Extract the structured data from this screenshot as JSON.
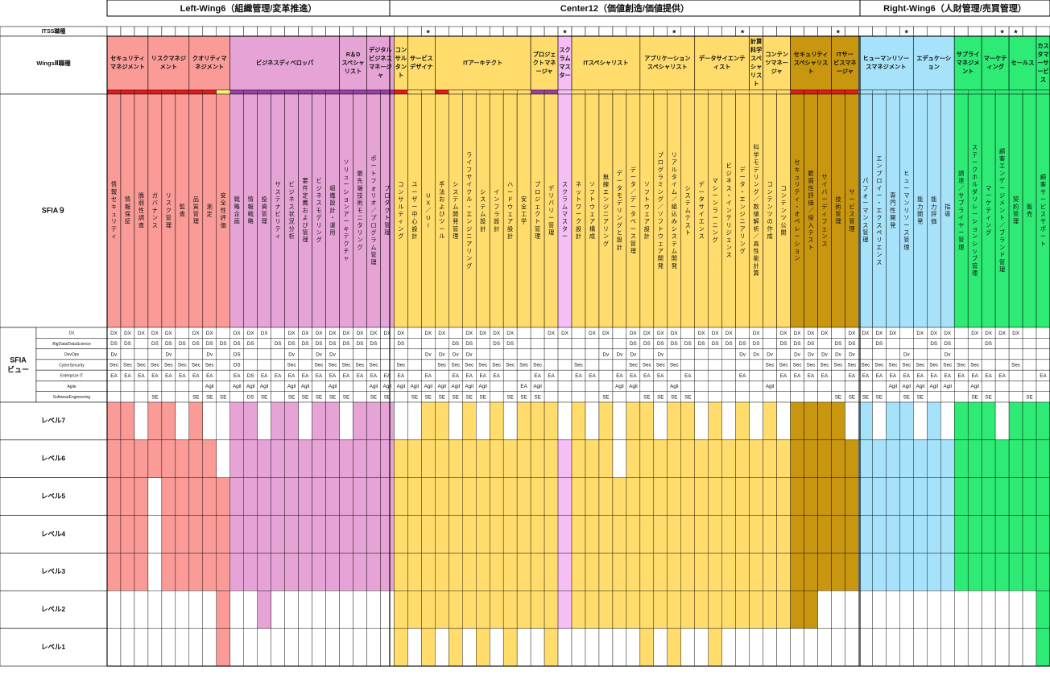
{
  "wings": [
    {
      "label": "Left-Wing6（組織管理/変革推進）"
    },
    {
      "label": "Center12（価値創造/価値提供）"
    },
    {
      "label": "Right-Wing6（人財管理/売買管理）"
    }
  ],
  "row_labels": {
    "itss": "ITSS職種",
    "wings2": "WingsⅡ職種",
    "sfia9": "SFIA９",
    "sfia_view": "SFIA\nビュー"
  },
  "view_labels": [
    "DX",
    "BigData/DataScience",
    "DevOps",
    "CyberSecurity",
    "Enterprize IT",
    "Agile",
    "SoftwearEngineering"
  ],
  "level_labels": [
    "レベル7",
    "レベル6",
    "レベル5",
    "レベル4",
    "レベル3",
    "レベル2",
    "レベル1"
  ],
  "itss_star_cols": [
    23,
    33,
    41,
    46,
    53,
    58,
    65,
    66
  ],
  "star_glyph": "★",
  "colors": {
    "salmon": "#FA9B97",
    "pink": "#E6A3D6",
    "yellow": "#FFDC6B",
    "lavender": "#F5BEF5",
    "gold": "#C9960F",
    "cyan": "#A6E2FA",
    "green": "#2EEB75",
    "red": "#E01B1B",
    "purple": "#9B3FA6",
    "lime": "#EDF56B"
  },
  "groups": [
    {
      "label": "セキュリティマネジメント",
      "span": 3,
      "color": "salmon",
      "bars": [
        "red",
        "red",
        "red"
      ]
    },
    {
      "label": "リスクマネジメント",
      "span": 3,
      "color": "salmon",
      "bars": [
        "red",
        "red",
        "red"
      ]
    },
    {
      "label": "クオリティマネジメント",
      "span": 3,
      "color": "salmon",
      "bars": [
        "red",
        "red",
        "lime"
      ]
    },
    {
      "label": "ビジネスディベロッパ",
      "span": 8,
      "color": "pink",
      "bars": [
        "purple",
        "purple",
        "purple",
        "purple",
        "purple",
        "purple",
        "purple",
        "purple"
      ]
    },
    {
      "label": "R＆D スペシャリスト",
      "span": 2,
      "color": "pink",
      "bars": [
        "purple",
        "purple"
      ]
    },
    {
      "label": "デジタルビジネスマネージャ",
      "span": 2,
      "color": "pink",
      "bars": [
        "purple",
        "purple"
      ]
    },
    {
      "label": "コンサルタント",
      "span": 1,
      "color": "yellow",
      "bars": [
        "red"
      ]
    },
    {
      "label": "サービスデザイナ",
      "span": 2,
      "color": "yellow",
      "bars": [
        "",
        ""
      ]
    },
    {
      "label": "ITアーキテクト",
      "span": 7,
      "color": "yellow",
      "bars": [
        "red",
        "",
        "",
        "",
        "",
        "",
        ""
      ]
    },
    {
      "label": "プロジェクトマネージャ",
      "span": 2,
      "color": "yellow",
      "bars": [
        "purple",
        "purple"
      ]
    },
    {
      "label": "スクラムマスター",
      "span": 1,
      "color": "lavender",
      "bars": [
        ""
      ]
    },
    {
      "label": "ITスペシャリスト",
      "span": 5,
      "color": "yellow",
      "bars": [
        "",
        "",
        "",
        "",
        ""
      ]
    },
    {
      "label": "アプリケーションスペシャリスト",
      "span": 4,
      "color": "yellow",
      "bars": [
        "",
        "",
        "",
        ""
      ]
    },
    {
      "label": "データサイエンティスト",
      "span": 4,
      "color": "yellow",
      "bars": [
        "",
        "",
        "",
        ""
      ]
    },
    {
      "label": "計算科学スペシャリスト",
      "span": 1,
      "color": "yellow",
      "bars": [
        ""
      ]
    },
    {
      "label": "コンテンツマネージャ",
      "span": 2,
      "color": "yellow",
      "bars": [
        "",
        ""
      ]
    },
    {
      "label": "セキュリティスペシャリスト",
      "span": 3,
      "color": "gold",
      "bars": [
        "red",
        "red",
        "red"
      ]
    },
    {
      "label": "ITサービスマネージャ",
      "span": 2,
      "color": "gold",
      "bars": [
        "red",
        "red"
      ]
    },
    {
      "label": "ヒューマンリソースマネジメント",
      "span": 4,
      "color": "cyan",
      "bars": [
        "",
        "",
        "",
        ""
      ]
    },
    {
      "label": "エデュケーション",
      "span": 3,
      "color": "cyan",
      "bars": [
        "",
        "",
        ""
      ]
    },
    {
      "label": "サプライマネジメント",
      "span": 2,
      "color": "green",
      "bars": [
        "",
        ""
      ]
    },
    {
      "label": "マーケティング",
      "span": 2,
      "color": "green",
      "bars": [
        "",
        ""
      ]
    },
    {
      "label": "セールス",
      "span": 2,
      "color": "green",
      "bars": [
        "",
        ""
      ]
    },
    {
      "label": "カスタマーサービス",
      "span": 1,
      "color": "green",
      "bars": [
        ""
      ]
    }
  ],
  "sfia_skills": [
    "情報セキュリティ",
    "情報保証",
    "脆弱性調査",
    "ガバナンス",
    "リスク管理",
    "監査",
    "品質管理",
    "測定",
    "安全性評価",
    "戦略企画",
    "情報戦略",
    "投資管理",
    "サステナビリティ",
    "ビジネス状況分析",
    "要件定義および管理",
    "ビジネスモデリング",
    "組織設計・運用",
    "ソリューションアーキテクチャ",
    "最先端技術モニタリング",
    "ポートフォリオ／プログラム管理",
    "プロダクト管理",
    "コンサルティング",
    "ユーザー中心設計",
    "UX／UI",
    "手法およびツール",
    "システム開発管理",
    "ライフサイクル・エンジニアリング",
    "システム設計",
    "インフラ設計",
    "ハードウェア設計",
    "安全工学",
    "プロジェクト管理",
    "デリバリー管理",
    "スクラムマスター",
    "ネットワーク設計",
    "ソフトウェア構成",
    "無線エンジニアリング",
    "データモデリングと設計",
    "データ／データベース管理",
    "ソフトウェア設計",
    "プログラミング／ソフトウェア開発",
    "リアルタイム／組込みシステム開発",
    "システムテスト",
    "データサイエンス",
    "マシーンラーニング",
    "ビジネス・インテリジェンス",
    "データ・エンジニアリング",
    "科学モデリング／数値解析／高性能計算",
    "コンテンツの作成",
    "コンテンツ公開",
    "セキュリティ・オペレーション",
    "脆弱性評価／侵入テスト",
    "サイバーディフェンス",
    "技術管理",
    "サービス管理",
    "パフォーマンス管理",
    "エンプロイー・エクスペリエンス",
    "専門性開発",
    "ヒューマンリソース管理",
    "能力開発",
    "能力評価",
    "指導",
    "調達／サプライヤー管理",
    "ステークホルダリレーションシップ管理",
    "マーケティング",
    "顧客エンゲージメント／ブランド管理",
    "契約管理",
    "販売",
    "顧客サービスサポート"
  ],
  "sfia_view": [
    [
      "DX DX DX DX DX _ DX DX _ DX DX DX _ DX DX DX DX DX DX DX DX DX _ DX DX _ DX DX DX DX _ _ DX DX _ DX DX _ DX DX DX DX _ DX DX DX _ DX _ DX DX DX DX _ DX DX DX DX _ DX DX DX _ DX DX DX DX _ _ DX"
    ],
    [
      "DS DS _ DS DS DS DS DS DS DS DS _ DS DS DS DS DS DS DS DS _ DS _ _ _ DS DS _ DS DS _ _ _ _ _ _ _ _ DS DS DS DS DS DS DS DS DS DS _ DS DS DS _ DS DS _ DS _ _ _ DS DS _ _ DS _ _ _ _ _ _ DS"
    ],
    [
      "Dv _ _ _ Dv _ _ Dv _ DS _ _ _ Dv _ Dv Dv _ _ _ _ _ _ Dv Dv Dv Dv _ _ _ _ _ _ _ _ _ Dv Dv Dv _ Dv _ _ _ _ _ Dv Dv Dv _ Dv Dv Dv Dv Dv _ _ _ Dv _ _ Dv _ _ _ _ _ _ _"
    ],
    [
      "Sec Sec Sec Sec Sec Sec Sec Sec _ DS _ _ _ Sec _ Sec Sec Sec Sec Sec _ Sec _ _ Sec Sec Sec Sec Sec Sec Sec Sec _ _ Sec _ _ _ Sec Sec Sec Sec _ _ _ _ _ _ Sec Sec Sec Sec Sec Sec Sec Sec Sec Sec Sec Sec Sec Sec Sec Sec _ _ Sec _ _"
    ],
    [
      "EA EA EA EA EA EA EA EA _ EA DS EA EA EA EA EA EA EA EA EA EA EA _ EA _ EA EA EA EA _ _ EA EA _ EA EA _ EA EA EA EA _ EA _ _ _ EA _ _ EA EA EA EA _ EA EA EA EA EA EA EA EA EA EA EA EA _ _ EA _ EA"
    ],
    [
      "_ _ _ _ _ _ _ Agil _ Agil Agil Agil _ Agil Agil _ Agil _ _ Agil Agil Agil Agil Agil Agil Agil Agil Agil _ _ EA Agil _ _ _ _ _ Agil Agil _ _ Agil _ _ _ _ _ _ Agil _ _ _ _ _ _ _ _ Agil Agil Agil Agil Agil _ Agil _ _ _ _ _ _ _"
    ],
    [
      "_ _ _ SE _ _ SE SE SE _ DS SE _ SE SE SE SE SE _ SE SE _ SE SE SE SE SE SE _ SE SE SE _ _ _ _ SE _ _ SE SE SE SE _ _ _ _ _ _ _ _ _ _ SE SE SE SE _ SE SE _ _ _ SE SE _ _ SE _ _"
    ]
  ],
  "levels": [
    "1 1 0 1 1 0 1 0 0 1 1 0 1 1 0 1 1 0 1 1 1 0 0 1 1 0 1 0 1 0 1 1 1 0 1 0 1 0 1 1 0 1 1 0 1 0 1 0 1 0 1 1 1 1 0 1 0 1 1 0 1 0 1 1 1 0 1 1 1",
    "1 1 1 1 1 1 1 1 0 1 1 1 1 1 1 1 1 1 1 1 1 1 1 1 1 1 1 1 1 1 1 1 1 1 1 1 1 0 1 1 1 1 1 1 1 1 1 1 1 1 1 1 1 1 1 1 1 1 1 1 1 1 1 1 1 1 1 1 1",
    "1 1 1 0 1 1 1 1 1 1 1 1 1 1 1 1 1 1 1 1 1 1 1 1 1 1 1 1 1 1 1 1 1 1 1 1 1 1 1 1 1 1 1 1 1 1 1 1 1 1 1 1 1 1 1 1 1 1 1 1 1 1 1 1 1 1 1 1 1",
    "1 1 1 0 1 1 1 1 1 1 1 1 1 1 1 1 1 1 1 1 1 1 1 1 1 1 1 1 1 1 1 1 1 1 1 1 1 1 1 1 1 1 1 1 1 1 1 1 1 1 1 1 1 1 1 1 1 1 1 1 1 1 1 1 1 1 1 1 1",
    "1 1 1 0 1 1 1 1 1 1 1 1 1 1 1 1 1 1 1 1 1 1 1 1 1 1 1 1 1 1 1 1 1 1 1 1 1 1 1 1 1 1 1 1 1 1 1 1 1 1 1 1 1 1 1 1 1 1 1 1 1 1 1 1 1 1 1 1 1",
    "0 0 0 0 0 0 0 0 1 0 0 1 0 0 0 0 0 0 0 0 0 1 1 1 1 1 1 1 1 1 1 1 1 1 1 1 1 1 1 1 1 1 1 1 1 1 1 1 1 1 1 1 0 0 0 0 0 0 0 0 0 0 0 0 0 0 0 0 1",
    "0 0 0 0 0 0 0 0 1 0 0 0 0 0 0 0 0 0 0 0 0 1 0 1 0 1 0 1 0 1 0 0 1 0 0 0 0 0 0 1 0 1 0 0 1 0 0 0 0 0 0 0 0 0 0 0 0 0 0 0 0 0 0 0 0 0 0 0 1"
  ]
}
